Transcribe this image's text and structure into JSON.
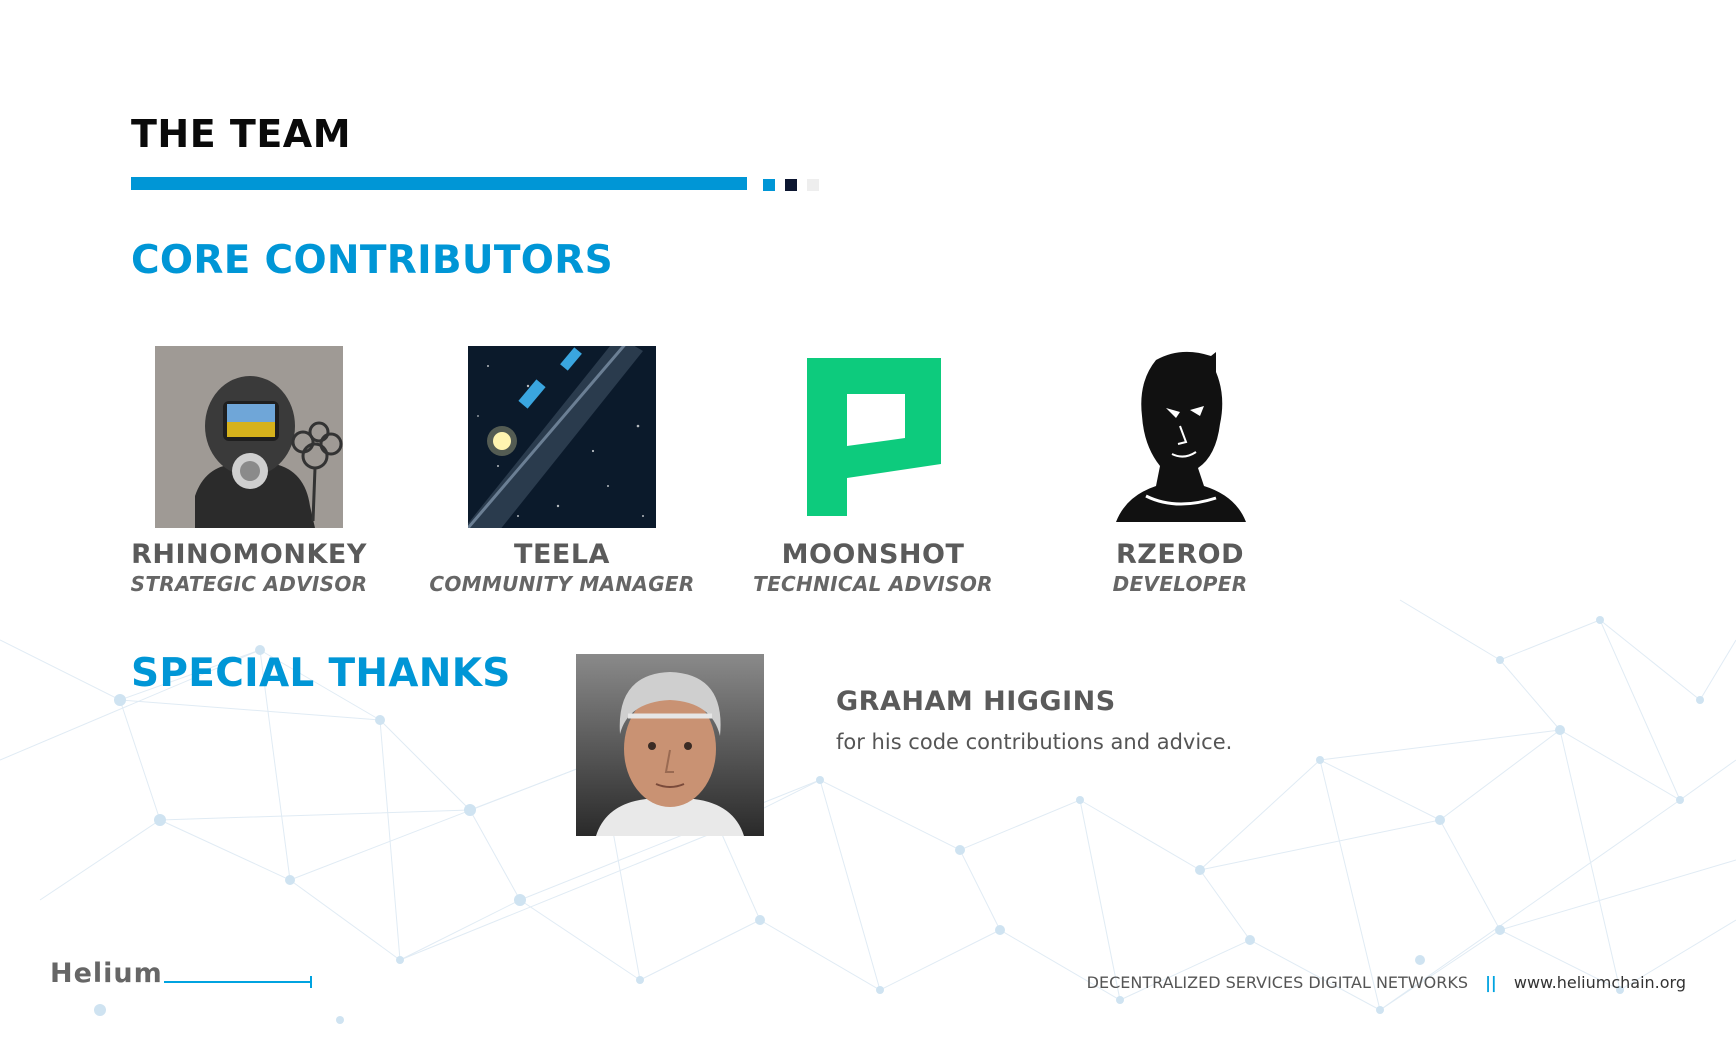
{
  "page": {
    "title": "THE TEAM",
    "accent_color": "#0096d6"
  },
  "core": {
    "heading": "CORE CONTRIBUTORS",
    "members": [
      {
        "name": "RHINOMONKEY",
        "role": "STRATEGIC ADVISOR",
        "image": "gas-mask-graffiti-avatar"
      },
      {
        "name": "TEELA",
        "role": "COMMUNITY MANAGER",
        "image": "space-station-avatar"
      },
      {
        "name": "MOONSHOT",
        "role": "TECHNICAL ADVISOR",
        "image": "green-p-logo-avatar"
      },
      {
        "name": "RZEROD",
        "role": "DEVELOPER",
        "image": "stencil-portrait-avatar"
      }
    ]
  },
  "thanks": {
    "heading": "SPECIAL THANKS",
    "name": "GRAHAM HIGGINS",
    "description": "for his code contributions and advice.",
    "image": "portrait-photo"
  },
  "footer": {
    "brand": "Helium",
    "tagline": "DECENTRALIZED SERVICES DIGITAL NETWORKS",
    "separator": "||",
    "url": "www.heliumchain.org"
  }
}
